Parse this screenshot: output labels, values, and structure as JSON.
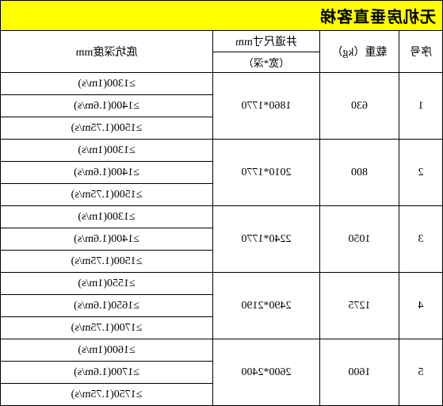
{
  "title": "无机房垂直客梯",
  "headers": {
    "seq": "序号",
    "load": "载重（kg）",
    "dim": "井道尺寸mm",
    "dim_sub": "（宽*深）",
    "depth": "底坑深度mm"
  },
  "rows": [
    {
      "seq": "1",
      "load": "630",
      "dim": "1860*1770",
      "depths": [
        "≥1300(1m/s)",
        "≥1400(1.6m/s)",
        "≥1500(1.75m/s)"
      ]
    },
    {
      "seq": "2",
      "load": "800",
      "dim": "2010*1770",
      "depths": [
        "≥1300(1m/s)",
        "≥1400(1.6m/s)",
        "≥1500(1.75m/s)"
      ]
    },
    {
      "seq": "3",
      "load": "1050",
      "dim": "2240*1770",
      "depths": [
        "≥1300(1m/s)",
        "≥1400(1.6m/s)",
        "≥1500(1.75m/s)"
      ]
    },
    {
      "seq": "4",
      "load": "1275",
      "dim": "2490*2190",
      "depths": [
        "≥1550(1m/s)",
        "≥1650(1.6m/s)",
        "≥1700(1.75m/s)"
      ]
    },
    {
      "seq": "5",
      "load": "1600",
      "dim": "2600*2400",
      "depths": [
        "≥1600(1m/s)",
        "≥1700(1.6m/s)",
        "≥1750(1.75m/s)"
      ]
    }
  ],
  "colors": {
    "title_bg": "#ffff00",
    "border": "#000000",
    "text": "#000000"
  }
}
